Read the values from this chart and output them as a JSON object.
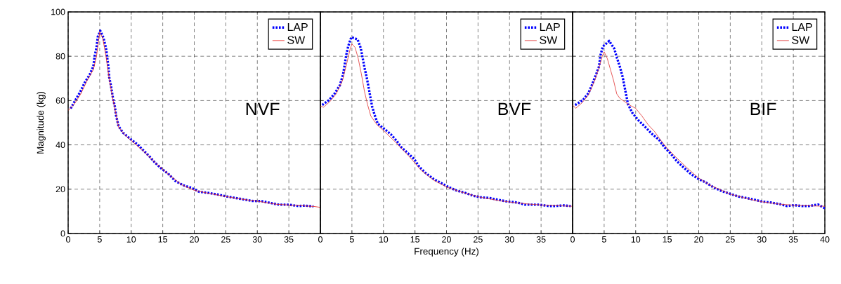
{
  "chart_data": [
    {
      "type": "line",
      "ylabel": "Magnitude (kg)",
      "xlim": [
        0,
        40
      ],
      "ylim": [
        0,
        100
      ],
      "xticks": [
        0,
        5,
        10,
        15,
        20,
        25,
        30,
        35
      ],
      "yticks": [
        0,
        20,
        40,
        60,
        80,
        100
      ],
      "grid": true,
      "legend": "top right",
      "annotations": [
        "NVF"
      ],
      "series": [
        {
          "name": "LAP",
          "color": "#0000ff",
          "line_style": "dotted",
          "x": [
            0.4,
            1.1,
            1.9,
            2.6,
            3.4,
            4,
            4.2,
            4.5,
            4.7,
            5.1,
            5.6,
            6,
            6.4,
            6.5,
            6.8,
            7.1,
            7.4,
            7.6,
            8,
            8.7,
            9.9,
            10.9,
            11.9,
            12.9,
            13.8,
            14.8,
            16,
            17,
            18.2,
            19.5,
            20.8,
            22.3,
            23.7,
            25.2,
            26.4,
            27.8,
            29.2,
            30.7,
            32.2,
            33.5,
            35,
            36.5,
            37.6,
            38.9
          ],
          "values": [
            56.4,
            60,
            63.8,
            68,
            71.6,
            75.5,
            80,
            84,
            88.8,
            91.5,
            88.3,
            83.7,
            75,
            70.7,
            66.5,
            61.2,
            57.4,
            53.2,
            48.4,
            45.5,
            42.6,
            40.4,
            37.6,
            34.8,
            31.9,
            29.3,
            26.6,
            23.7,
            21.8,
            20.7,
            18.8,
            18.3,
            17.6,
            16.7,
            16.1,
            15.4,
            14.7,
            14.6,
            13.7,
            13,
            13,
            12.4,
            12.6,
            12.2
          ]
        },
        {
          "name": "SW",
          "color": "#e8201a",
          "line_style": "solid",
          "x": [
            0,
            1,
            2,
            3,
            4,
            4.5,
            5,
            5.5,
            6,
            6.5,
            7,
            7.5,
            8,
            9,
            10,
            12,
            14,
            16,
            18,
            20,
            22,
            25,
            28,
            30,
            33,
            36,
            39,
            40
          ],
          "values": [
            55.5,
            58.5,
            63,
            69,
            74,
            80,
            91,
            88,
            80,
            70,
            62,
            55,
            48,
            44.5,
            42,
            37,
            31.5,
            26.5,
            22,
            19.5,
            18.3,
            16.7,
            15.3,
            14.6,
            13.2,
            12.7,
            12.2,
            11.8
          ]
        }
      ]
    },
    {
      "type": "line",
      "xlabel": "Frequency (Hz)",
      "xlim": [
        0,
        40
      ],
      "ylim": [
        0,
        100
      ],
      "xticks": [
        0,
        5,
        10,
        15,
        20,
        25,
        30,
        35
      ],
      "yticks": [
        0,
        20,
        40,
        60,
        80,
        100
      ],
      "grid": true,
      "legend": "top right",
      "tick_labels": "x",
      "annotations": [
        "BVF"
      ],
      "series": [
        {
          "name": "LAP",
          "color": "#0000ff",
          "line_style": "dotted",
          "x": [
            0.3,
            1.4,
            2.3,
            3.1,
            3.6,
            4.1,
            4.4,
            4.9,
            5.9,
            6.4,
            6.7,
            7,
            7.3,
            7.6,
            7.9,
            8.2,
            8.6,
            9.1,
            10.2,
            11.2,
            12.1,
            12.8,
            13.9,
            14.9,
            15.7,
            16.7,
            17.9,
            19.2,
            20.3,
            21.6,
            22.9,
            24.3,
            25.5,
            26.9,
            28.2,
            29.7,
            31.2,
            32.5,
            33.6,
            34.7,
            36.2,
            37.2,
            38.5,
            39.7
          ],
          "values": [
            58,
            60.3,
            63.3,
            67,
            71.8,
            80.5,
            84.4,
            88.6,
            87.6,
            83.7,
            79.3,
            74.8,
            71,
            66.7,
            62,
            57.4,
            53.5,
            49.5,
            47.1,
            44.7,
            41.8,
            39,
            36.2,
            33.5,
            30,
            27.3,
            24.7,
            22.7,
            21,
            19.4,
            18.4,
            17,
            16.3,
            16,
            15.2,
            14.4,
            14,
            13,
            13,
            13,
            12.4,
            12.4,
            12.7,
            12.4
          ]
        },
        {
          "name": "SW",
          "color": "#e03030",
          "line_style": "solid",
          "x": [
            0,
            0.5,
            1.5,
            2.5,
            3.5,
            4.2,
            4.7,
            5,
            5.5,
            6,
            6.5,
            7,
            7.5,
            8,
            9,
            10,
            12,
            14,
            16,
            18,
            20,
            22,
            25,
            28,
            30,
            33,
            36,
            40
          ],
          "values": [
            57.5,
            57,
            59.5,
            63,
            69,
            77,
            83,
            85.5,
            84,
            79,
            72,
            64,
            58,
            53,
            49,
            46.5,
            41,
            35,
            28.5,
            24,
            21,
            19,
            16.6,
            15,
            14.2,
            13.3,
            12.7,
            12.3
          ]
        }
      ]
    },
    {
      "type": "line",
      "xlim": [
        0,
        40
      ],
      "ylim": [
        0,
        100
      ],
      "xticks": [
        0,
        5,
        10,
        15,
        20,
        25,
        30,
        35,
        40
      ],
      "yticks": [
        0,
        20,
        40,
        60,
        80,
        100
      ],
      "grid": true,
      "legend": "top right",
      "tick_labels": "x",
      "annotations": [
        "BIF"
      ],
      "series": [
        {
          "name": "LAP",
          "color": "#0000ff",
          "line_style": "dotted",
          "x": [
            0.4,
            1.6,
            2.5,
            3.1,
            3.7,
            4.2,
            4.4,
            4.8,
            5.8,
            6.6,
            7,
            7.5,
            7.9,
            8.2,
            8.5,
            8.8,
            9.5,
            10.5,
            11.5,
            12.6,
            13.7,
            14.6,
            15.6,
            16.6,
            17.6,
            18.8,
            19.9,
            21.2,
            22.4,
            23.7,
            25,
            26.3,
            27.6,
            28.9,
            30.1,
            31.4,
            32.8,
            34,
            35.1,
            36.4,
            37.5,
            38.9,
            40
          ],
          "values": [
            58,
            60.1,
            63.3,
            67.3,
            71.6,
            75.5,
            80.3,
            84.4,
            86.9,
            83.5,
            79.5,
            75.2,
            71,
            66.7,
            62.4,
            58.2,
            54.3,
            50.9,
            48.1,
            44.9,
            42.3,
            38.8,
            35.9,
            32.4,
            29.8,
            26.8,
            24.7,
            22.9,
            20.7,
            19.1,
            17.9,
            16.7,
            16,
            15.2,
            14.4,
            14,
            13.3,
            12.4,
            12.8,
            12.4,
            12.4,
            13.1,
            11.4
          ]
        },
        {
          "name": "SW",
          "color": "#e03030",
          "line_style": "solid",
          "x": [
            0,
            0.5,
            1.5,
            2.5,
            3.5,
            4.2,
            4.7,
            5,
            5.5,
            6,
            6.5,
            7,
            7.5,
            8,
            9,
            10,
            11,
            12,
            13,
            14,
            15,
            16,
            18,
            20,
            22,
            25,
            28,
            30,
            33,
            36,
            40
          ],
          "values": [
            58,
            56.5,
            59,
            62.5,
            69,
            75,
            80,
            82,
            79,
            74,
            69,
            63,
            61,
            60,
            58,
            56.5,
            53,
            49,
            46,
            42,
            38.5,
            35.5,
            30,
            25,
            21.5,
            17.8,
            15.5,
            14.3,
            13.2,
            12.6,
            12.3
          ]
        }
      ]
    }
  ]
}
